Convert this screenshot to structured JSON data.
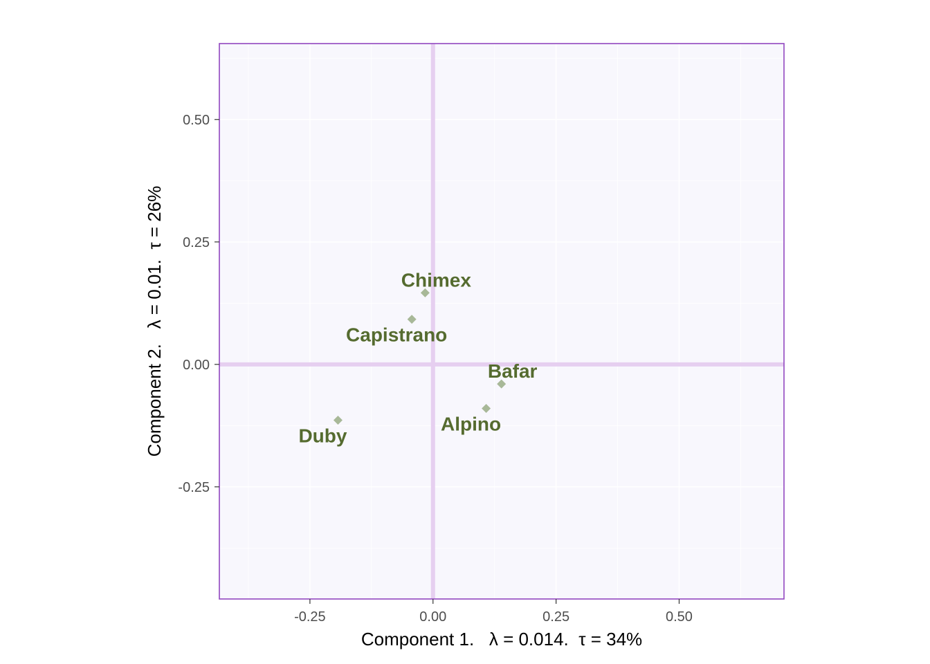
{
  "chart_data": {
    "type": "scatter",
    "xlabel": "Component 1.   λ = 0.014.  τ = 34%",
    "ylabel": "Component 2.   λ = 0.01.  τ = 26%",
    "xlim": [
      -0.434,
      0.713
    ],
    "ylim": [
      -0.479,
      0.655
    ],
    "x_ticks": [
      -0.25,
      0.0,
      0.25,
      0.5
    ],
    "x_tick_labels": [
      "-0.25",
      "0.00",
      "0.25",
      "0.50"
    ],
    "y_ticks": [
      -0.25,
      0.0,
      0.25,
      0.5
    ],
    "y_tick_labels": [
      "-0.25",
      "0.00",
      "0.25",
      "0.50"
    ],
    "grid": true,
    "reference_lines": {
      "x": 0,
      "y": 0
    },
    "points": [
      {
        "label": "Chimex",
        "x": -0.016,
        "y": 0.146,
        "label_pos": "above"
      },
      {
        "label": "Capistrano",
        "x": -0.043,
        "y": 0.092,
        "label_pos": "below"
      },
      {
        "label": "Bafar",
        "x": 0.139,
        "y": -0.04,
        "label_pos": "above"
      },
      {
        "label": "Alpino",
        "x": 0.108,
        "y": -0.09,
        "label_pos": "below"
      },
      {
        "label": "Duby",
        "x": -0.193,
        "y": -0.114,
        "label_pos": "below"
      }
    ],
    "colors": {
      "panel_background": "#f8f7fd",
      "panel_border": "#9146c0",
      "grid": "#ffffff",
      "reference_line": "#e6cff0",
      "point": "#a8b898",
      "label": "#556b2f",
      "tick_mark": "#333333"
    }
  }
}
